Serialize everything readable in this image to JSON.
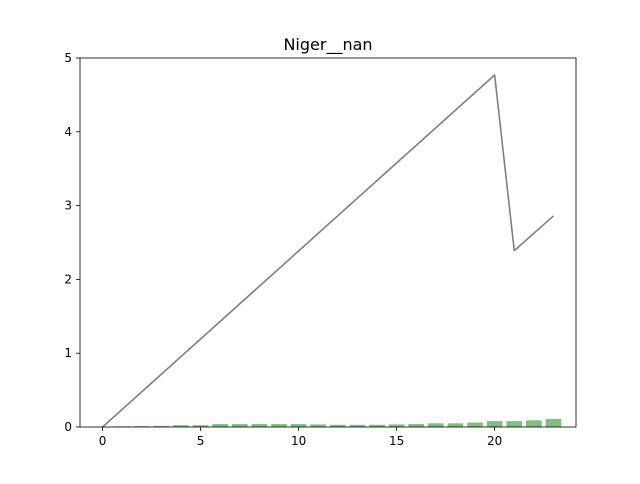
{
  "chart_data": {
    "type": "bar+line",
    "title": "Niger__nan",
    "xlabel": "",
    "ylabel": "",
    "xlim": [
      -1.15,
      24.15
    ],
    "ylim": [
      0,
      5
    ],
    "x_ticks": [
      0,
      5,
      10,
      15,
      20
    ],
    "y_ticks": [
      0,
      1,
      2,
      3,
      4,
      5
    ],
    "grid": false,
    "legend": "none",
    "colors": {
      "bars": "#7fbf7f",
      "line": "#808080",
      "axes": "#000000"
    },
    "bars": {
      "x": [
        0,
        1,
        2,
        3,
        4,
        5,
        6,
        7,
        8,
        9,
        10,
        11,
        12,
        13,
        14,
        15,
        16,
        17,
        18,
        19,
        20,
        21,
        22,
        23
      ],
      "values": [
        0.003,
        0.01,
        0.012,
        0.015,
        0.025,
        0.025,
        0.04,
        0.04,
        0.04,
        0.04,
        0.04,
        0.035,
        0.03,
        0.03,
        0.03,
        0.035,
        0.04,
        0.05,
        0.05,
        0.06,
        0.08,
        0.08,
        0.09,
        0.11
      ]
    },
    "line": {
      "x": [
        0,
        20,
        21,
        23
      ],
      "y": [
        0,
        4.77,
        2.39,
        2.86
      ]
    }
  }
}
